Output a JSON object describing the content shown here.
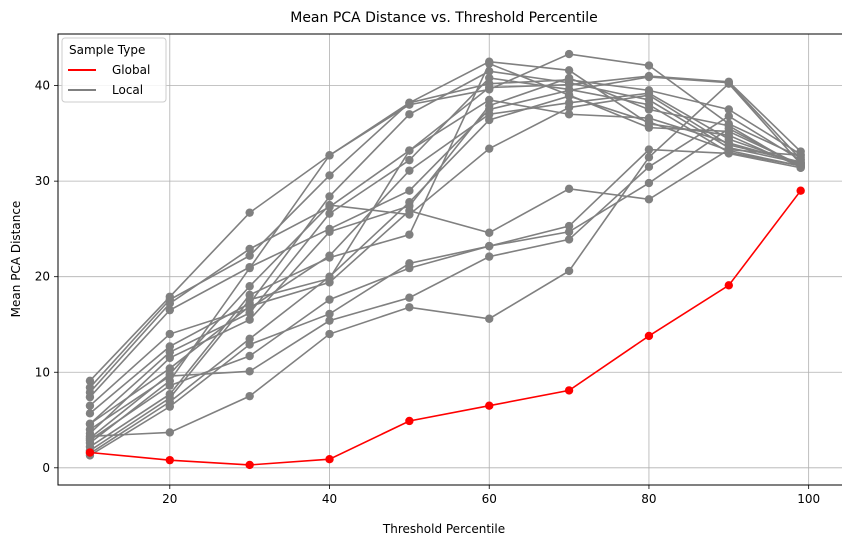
{
  "chart_data": {
    "type": "line",
    "title": "Mean PCA Distance vs. Threshold Percentile",
    "xlabel": "Threshold Percentile",
    "ylabel": "Mean PCA Distance",
    "xlim": [
      6,
      104.3
    ],
    "ylim": [
      -1.8,
      45.4
    ],
    "xticks": [
      20,
      40,
      60,
      80,
      100
    ],
    "yticks": [
      0,
      10,
      20,
      30,
      40
    ],
    "grid": true,
    "legend": {
      "title": "Sample Type",
      "placement": "top-left",
      "entries": [
        {
          "label": "Global",
          "color": "#ff0000"
        },
        {
          "label": "Local",
          "color": "#808080"
        }
      ]
    },
    "x": [
      10,
      20,
      30,
      40,
      50,
      60,
      70,
      80,
      90,
      99
    ],
    "global": {
      "color": "#ff0000",
      "values": [
        1.6,
        0.8,
        0.3,
        0.9,
        4.9,
        6.5,
        8.1,
        13.8,
        19.1,
        29.0
      ]
    },
    "local": {
      "color": "#808080",
      "series": [
        [
          9.1,
          17.9,
          26.7,
          32.7,
          38.2,
          42.5,
          41.6,
          36.0,
          34.8,
          31.5
        ],
        [
          8.4,
          17.6,
          22.2,
          30.6,
          38.2,
          40.2,
          40.6,
          39.5,
          37.5,
          32.8
        ],
        [
          7.9,
          17.2,
          22.9,
          27.3,
          33.2,
          39.8,
          40.1,
          41.0,
          40.4,
          33.1
        ],
        [
          7.4,
          16.5,
          21.0,
          25.0,
          29.0,
          37.5,
          39.5,
          40.9,
          40.3,
          32.3
        ],
        [
          6.5,
          14.0,
          16.7,
          22.2,
          31.1,
          37.0,
          38.2,
          39.2,
          34.4,
          31.8
        ],
        [
          5.7,
          12.7,
          17.2,
          28.4,
          37.0,
          41.5,
          40.3,
          38.5,
          33.5,
          31.9
        ],
        [
          4.6,
          12.1,
          16.2,
          26.6,
          32.2,
          40.8,
          39.6,
          38.0,
          33.0,
          31.6
        ],
        [
          3.6,
          11.5,
          15.5,
          24.7,
          27.4,
          37.9,
          40.8,
          37.5,
          35.8,
          31.4
        ],
        [
          3.1,
          9.8,
          19.0,
          27.5,
          26.5,
          33.4,
          37.7,
          39.0,
          33.8,
          32.0
        ],
        [
          2.6,
          9.1,
          20.9,
          32.7,
          38.0,
          39.6,
          43.3,
          42.1,
          36.0,
          32.5
        ],
        [
          2.2,
          7.7,
          18.1,
          22.0,
          24.4,
          42.3,
          39.0,
          35.6,
          35.2,
          31.7
        ],
        [
          1.8,
          7.3,
          17.6,
          19.8,
          33.2,
          38.5,
          37.0,
          36.6,
          34.0,
          31.9
        ],
        [
          1.5,
          6.9,
          13.5,
          20.0,
          27.8,
          36.4,
          38.9,
          36.2,
          33.2,
          31.6
        ],
        [
          1.3,
          6.4,
          12.9,
          16.1,
          21.4,
          23.2,
          25.3,
          33.3,
          32.9,
          31.4
        ],
        [
          2.9,
          8.6,
          11.7,
          17.6,
          20.9,
          23.2,
          24.7,
          29.8,
          35.5,
          31.6
        ],
        [
          4.0,
          9.6,
          10.1,
          15.4,
          17.8,
          22.1,
          23.9,
          31.5,
          36.8,
          32.2
        ],
        [
          3.3,
          3.7,
          7.5,
          14.0,
          16.8,
          15.6,
          20.6,
          32.5,
          40.2,
          31.8
        ],
        [
          4.6,
          10.4,
          16.9,
          19.4,
          26.9,
          24.6,
          29.2,
          28.1,
          33.3,
          32.7
        ]
      ]
    }
  }
}
